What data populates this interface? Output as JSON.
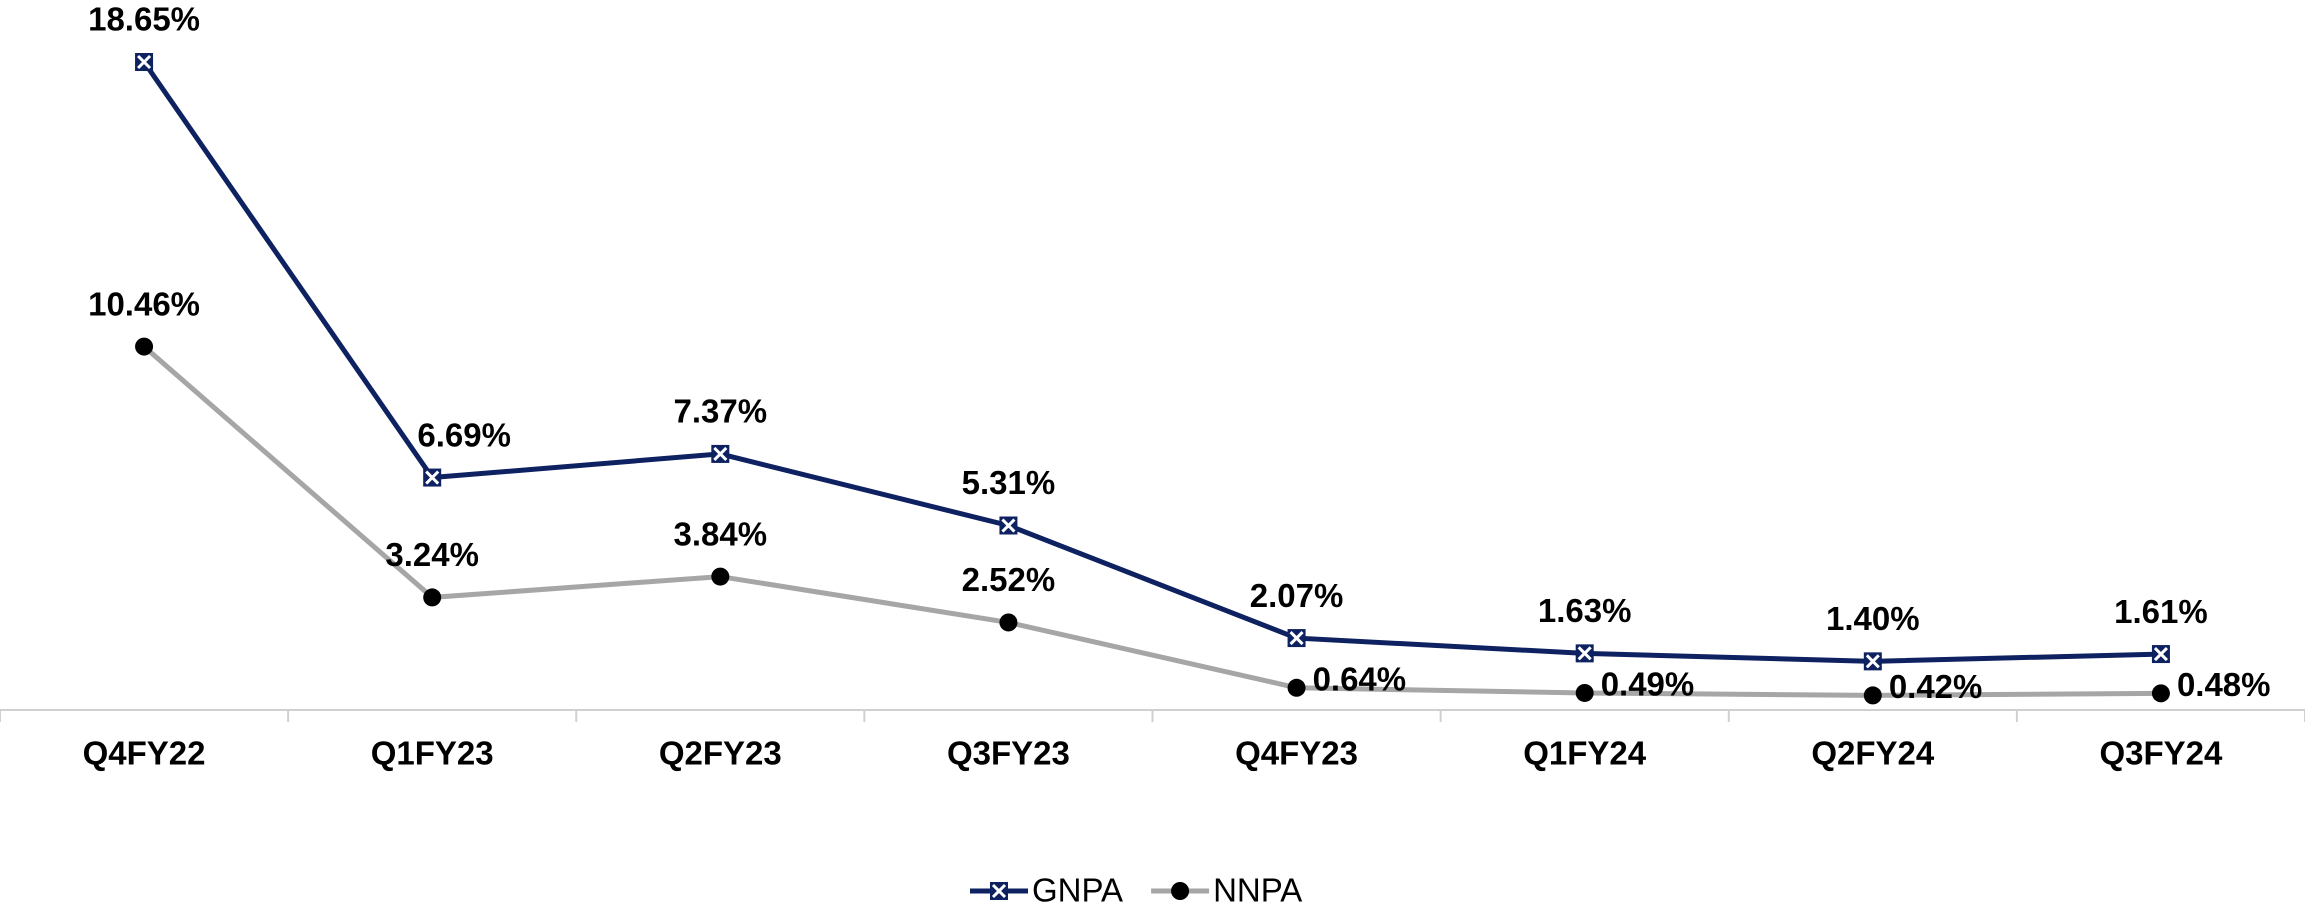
{
  "chart_data": {
    "type": "line",
    "categories": [
      "Q4FY22",
      "Q1FY23",
      "Q2FY23",
      "Q3FY23",
      "Q4FY23",
      "Q1FY24",
      "Q2FY24",
      "Q3FY24"
    ],
    "series": [
      {
        "name": "GNPA",
        "color": "#0e2160",
        "marker": "square-x",
        "values": [
          18.65,
          6.69,
          7.37,
          5.31,
          2.07,
          1.63,
          1.4,
          1.61
        ],
        "value_labels": [
          "18.65%",
          "6.69%",
          "7.37%",
          "5.31%",
          "2.07%",
          "1.63%",
          "1.40%",
          "1.61%"
        ]
      },
      {
        "name": "NNPA",
        "color": "#a6a6a6",
        "marker": "circle",
        "marker_color": "#000000",
        "values": [
          10.46,
          3.24,
          3.84,
          2.52,
          0.64,
          0.49,
          0.42,
          0.48
        ],
        "value_labels": [
          "10.46%",
          "3.24%",
          "3.84%",
          "2.52%",
          "0.64%",
          "0.49%",
          "0.42%",
          "0.48%"
        ]
      }
    ],
    "legend": "bottom"
  }
}
